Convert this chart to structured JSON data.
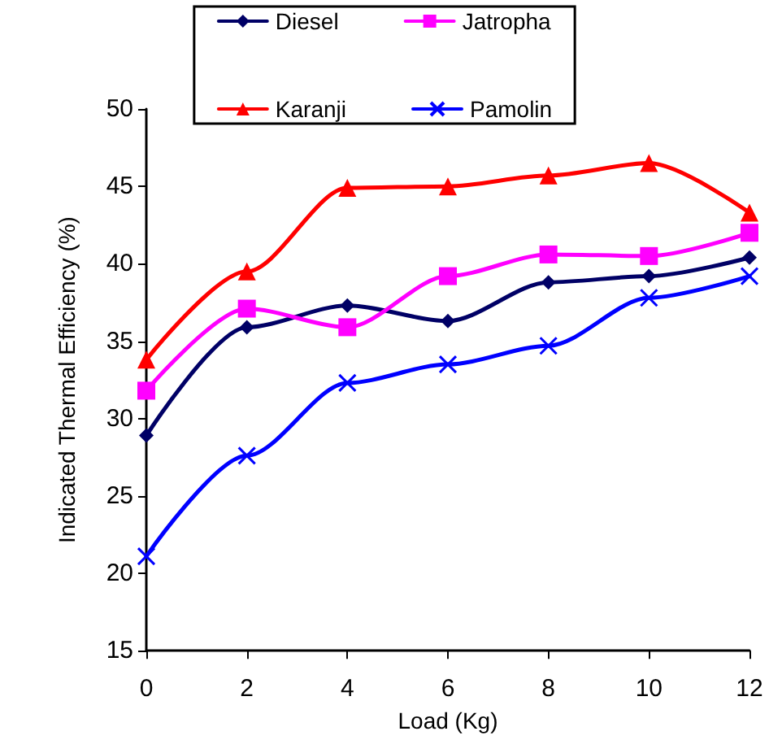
{
  "chart_data": {
    "type": "line",
    "xlabel": "Load (Kg)",
    "ylabel": "Indicated Thermal Efficiency (%)",
    "x": [
      0,
      2,
      4,
      6,
      8,
      10,
      12
    ],
    "series": [
      {
        "name": "Diesel",
        "color": "#000066",
        "marker": "diamond",
        "values": [
          28.9,
          35.9,
          37.3,
          36.3,
          38.8,
          39.2,
          40.4
        ]
      },
      {
        "name": "Jatropha",
        "color": "#ff00ff",
        "marker": "square",
        "values": [
          31.8,
          37.1,
          35.9,
          39.2,
          40.6,
          40.5,
          42.0
        ]
      },
      {
        "name": "Karanji",
        "color": "#ff0000",
        "marker": "triangle",
        "values": [
          33.8,
          39.5,
          44.9,
          45.0,
          45.7,
          46.5,
          43.3
        ]
      },
      {
        "name": "Pamolin",
        "color": "#0000ff",
        "marker": "cross",
        "values": [
          21.1,
          27.6,
          32.3,
          33.5,
          34.7,
          37.8,
          39.2
        ]
      }
    ],
    "xlim": [
      0,
      12
    ],
    "xticks": [
      0,
      2,
      4,
      6,
      8,
      10,
      12
    ],
    "ylim": [
      15,
      50
    ],
    "yticks": [
      15,
      20,
      25,
      30,
      35,
      40,
      45,
      50
    ],
    "grid": false,
    "legend": "top",
    "line_style": "solid"
  }
}
